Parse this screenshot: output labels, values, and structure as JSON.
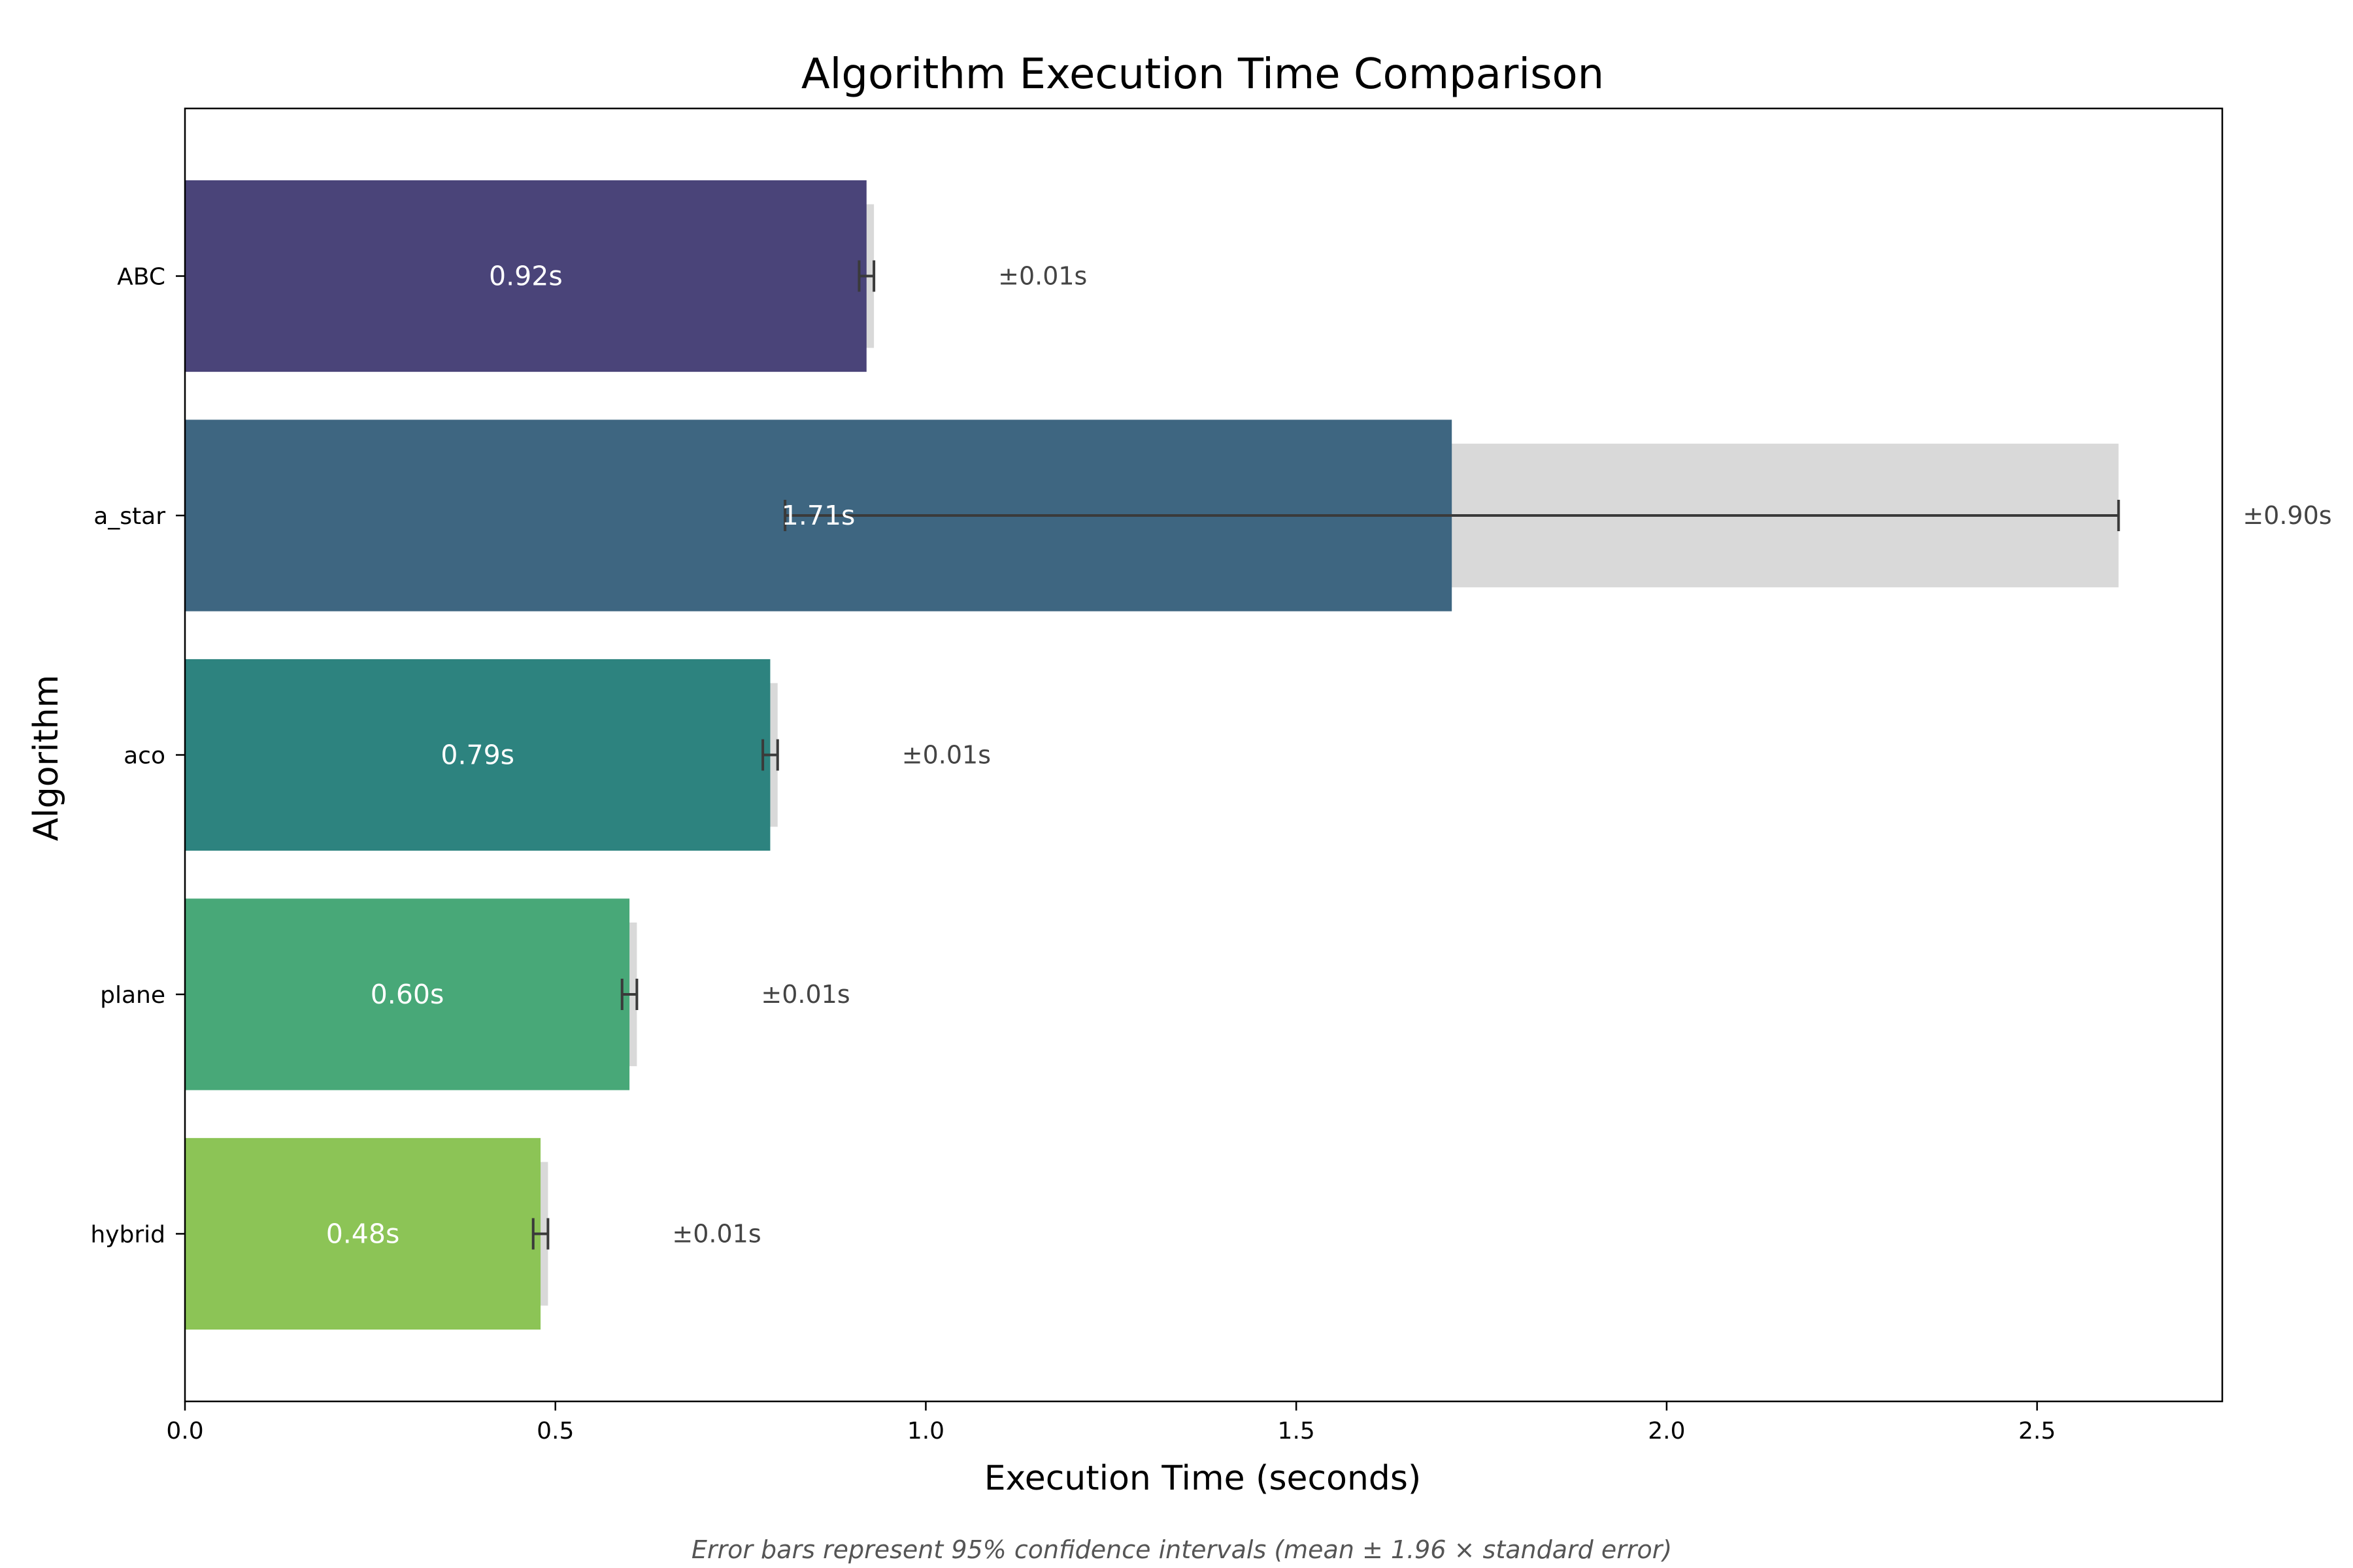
{
  "chart_data": {
    "type": "bar",
    "orientation": "horizontal",
    "title": "Algorithm Execution Time Comparison",
    "xlabel": "Execution Time (seconds)",
    "ylabel": "Algorithm",
    "categories": [
      "ABC",
      "a_star",
      "aco",
      "plane",
      "hybrid"
    ],
    "values": [
      0.92,
      1.71,
      0.79,
      0.6,
      0.48
    ],
    "value_labels": [
      "0.92s",
      "1.71s",
      "0.79s",
      "0.60s",
      "0.48s"
    ],
    "errors": [
      0.01,
      0.9,
      0.01,
      0.01,
      0.01
    ],
    "error_labels": [
      "±0.01s",
      "±0.90s",
      "±0.01s",
      "±0.01s",
      "±0.01s"
    ],
    "colors": [
      "#4a4479",
      "#3e6681",
      "#2d837f",
      "#48a878",
      "#8cc456"
    ],
    "error_band_color": "#d9d9d9",
    "error_bar_color": "#3a3a3a",
    "xlim": [
      0,
      2.75
    ],
    "xticks": [
      0.0,
      0.5,
      1.0,
      1.5,
      2.0,
      2.5
    ],
    "xtick_labels": [
      "0.0",
      "0.5",
      "1.0",
      "1.5",
      "2.0",
      "2.5"
    ],
    "grid": false,
    "legend": "none"
  },
  "footnote": "Error bars represent 95% confidence intervals (mean ± 1.96 × standard error)"
}
